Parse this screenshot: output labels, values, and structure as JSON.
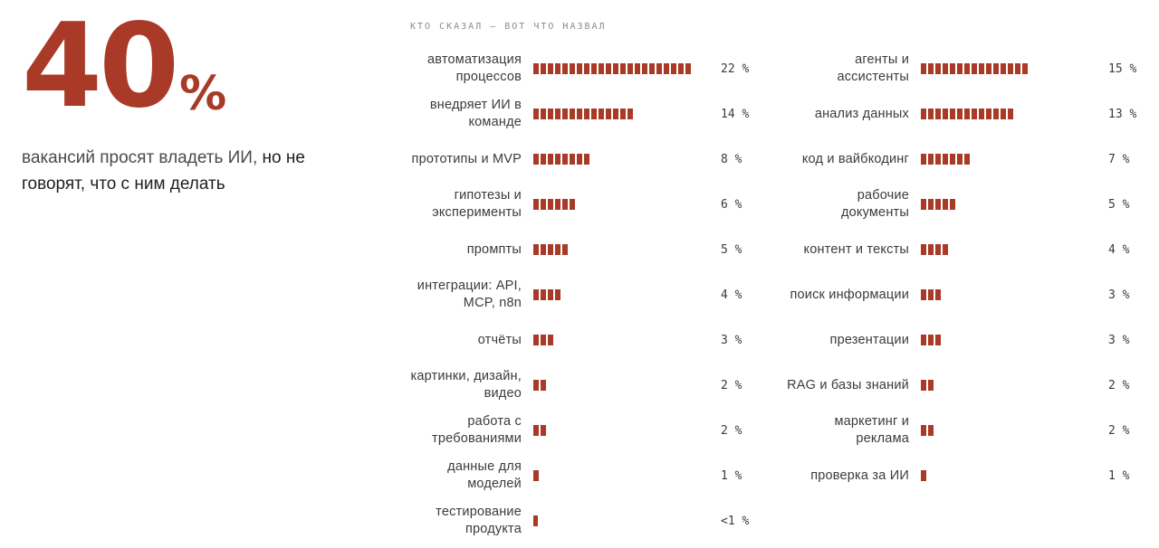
{
  "hero": {
    "number": "40",
    "percent_sign": "%",
    "text_line1": "вакансий просят владеть ИИ, ",
    "text_strong1": "но не",
    "text_strong2": "говорят, что с ним делать"
  },
  "chart_header": "КТО СКАЗАЛ — ВОТ ЧТО НАЗВАЛ",
  "colors": {
    "accent": "#a83a27",
    "text": "#3b3b3b"
  },
  "chart_data": [
    {
      "type": "bar",
      "categories": [
        "автоматизация процессов",
        "внедряет ИИ в команде",
        "прототипы и MVP",
        "гипотезы и эксперименты",
        "промпты",
        "интеграции: API, MCP, n8n",
        "отчёты",
        "картинки, дизайн, видео",
        "работа с требованиями",
        "данные для моделей",
        "тестирование продукта"
      ],
      "values": [
        22,
        14,
        8,
        6,
        5,
        4,
        3,
        2,
        2,
        1,
        0.5
      ],
      "value_labels": [
        "22 %",
        "14 %",
        "8 %",
        "6 %",
        "5 %",
        "4 %",
        "3 %",
        "2 %",
        "2 %",
        "1 %",
        "<1 %"
      ]
    },
    {
      "type": "bar",
      "categories": [
        "агенты и ассистенты",
        "анализ данных",
        "код и вайбкодинг",
        "рабочие документы",
        "контент и тексты",
        "поиск информации",
        "презентации",
        "RAG и базы знаний",
        "маркетинг и реклама",
        "проверка за ИИ"
      ],
      "values": [
        15,
        13,
        7,
        5,
        4,
        3,
        3,
        2,
        2,
        1
      ],
      "value_labels": [
        "15 %",
        "13 %",
        "7 %",
        "5 %",
        "4 %",
        "3 %",
        "3 %",
        "2 %",
        "2 %",
        "1 %"
      ]
    }
  ]
}
